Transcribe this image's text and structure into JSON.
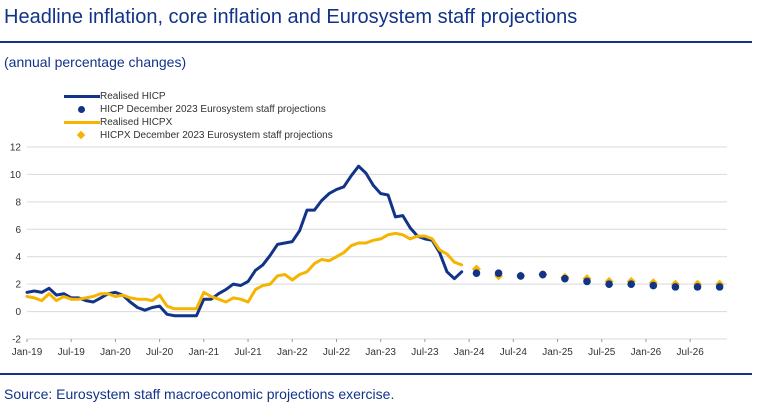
{
  "title": "Headline inflation, core inflation and Eurosystem staff projections",
  "subtitle": "(annual percentage changes)",
  "source": "Source: Eurosystem staff macroeconomic projections exercise.",
  "colors": {
    "hicp": "#113388",
    "hicpx": "#f5b400",
    "title": "#113388",
    "axis": "#000000",
    "grid": "#d9d9d9"
  },
  "legend": {
    "hicp": "Realised HICP",
    "hicp_proj": "HICP December 2023 Eurosystem staff projections",
    "hicpx": "Realised HICPX",
    "hicpx_proj": "HICPX December 2023 Eurosystem staff projections"
  },
  "chart_data": {
    "type": "line",
    "title": "Headline inflation, core inflation and Eurosystem staff projections",
    "ylabel": "(annual percentage changes)",
    "ylim": [
      -2,
      12
    ],
    "yticks": [
      -2,
      0,
      2,
      4,
      6,
      8,
      10,
      12
    ],
    "grid": true,
    "legend_position": "top-left",
    "x_ticks": [
      "Jan-19",
      "Jul-19",
      "Jan-20",
      "Jul-20",
      "Jan-21",
      "Jul-21",
      "Jan-22",
      "Jul-22",
      "Jan-23",
      "Jul-23",
      "Jan-24",
      "Jul-24",
      "Jan-25",
      "Jul-25",
      "Jan-26",
      "Jul-26"
    ],
    "x_start": "Jan-19",
    "x_end": "Dec-26",
    "series": [
      {
        "name": "Realised HICP",
        "style": "line",
        "start": "Jan-19",
        "values": [
          1.4,
          1.5,
          1.4,
          1.7,
          1.2,
          1.3,
          1.0,
          1.0,
          0.8,
          0.7,
          1.0,
          1.3,
          1.4,
          1.2,
          0.7,
          0.3,
          0.1,
          0.3,
          0.4,
          -0.2,
          -0.3,
          -0.3,
          -0.3,
          -0.3,
          0.9,
          0.9,
          1.3,
          1.6,
          2.0,
          1.9,
          2.2,
          3.0,
          3.4,
          4.1,
          4.9,
          5.0,
          5.1,
          5.9,
          7.4,
          7.4,
          8.1,
          8.6,
          8.9,
          9.1,
          9.9,
          10.6,
          10.1,
          9.2,
          8.6,
          8.5,
          6.9,
          7.0,
          6.1,
          5.5,
          5.3,
          5.2,
          4.3,
          2.9,
          2.4,
          2.9
        ]
      },
      {
        "name": "HICP December 2023 Eurosystem staff projections",
        "style": "points",
        "quarters": [
          "Q1-24",
          "Q2-24",
          "Q3-24",
          "Q4-24",
          "Q1-25",
          "Q2-25",
          "Q3-25",
          "Q4-25",
          "Q1-26",
          "Q2-26",
          "Q3-26",
          "Q4-26"
        ],
        "values": [
          2.8,
          2.8,
          2.6,
          2.7,
          2.4,
          2.2,
          2.0,
          2.0,
          1.9,
          1.8,
          1.8,
          1.8
        ]
      },
      {
        "name": "Realised HICPX",
        "style": "line",
        "start": "Jan-19",
        "values": [
          1.1,
          1.0,
          0.8,
          1.3,
          0.8,
          1.1,
          0.9,
          0.9,
          1.0,
          1.1,
          1.3,
          1.3,
          1.1,
          1.2,
          1.0,
          0.9,
          0.9,
          0.8,
          1.2,
          0.4,
          0.2,
          0.2,
          0.2,
          0.2,
          1.4,
          1.1,
          0.9,
          0.7,
          1.0,
          0.9,
          0.7,
          1.6,
          1.9,
          2.0,
          2.6,
          2.7,
          2.3,
          2.7,
          2.9,
          3.5,
          3.8,
          3.7,
          4.0,
          4.3,
          4.8,
          5.0,
          5.0,
          5.2,
          5.3,
          5.6,
          5.7,
          5.6,
          5.3,
          5.5,
          5.5,
          5.3,
          4.5,
          4.2,
          3.6,
          3.4
        ]
      },
      {
        "name": "HICPX December 2023 Eurosystem staff projections",
        "style": "points",
        "quarters": [
          "Q1-24",
          "Q2-24",
          "Q3-24",
          "Q4-24",
          "Q1-25",
          "Q2-25",
          "Q3-25",
          "Q4-25",
          "Q1-26",
          "Q2-26",
          "Q3-26",
          "Q4-26"
        ],
        "values": [
          3.1,
          2.6,
          2.6,
          2.7,
          2.5,
          2.4,
          2.2,
          2.2,
          2.1,
          2.0,
          2.0,
          2.0
        ]
      }
    ]
  }
}
